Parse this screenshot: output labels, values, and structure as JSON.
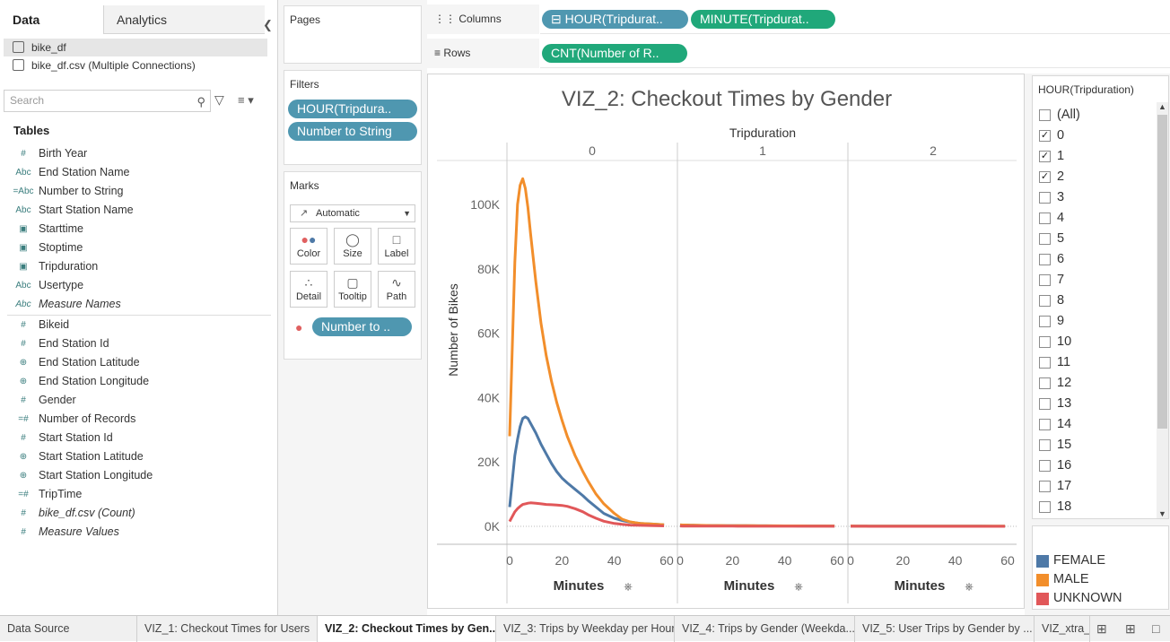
{
  "left_pane": {
    "tabs": [
      "Data",
      "Analytics"
    ],
    "datasources": [
      "bike_df",
      "bike_df.csv (Multiple Connections)"
    ],
    "search_placeholder": "Search",
    "tables_heading": "Tables",
    "dimensions": [
      {
        "icon": "#",
        "label": "Birth Year"
      },
      {
        "icon": "Abc",
        "label": "End Station Name"
      },
      {
        "icon": "=Abc",
        "label": "Number to String"
      },
      {
        "icon": "Abc",
        "label": "Start Station Name"
      },
      {
        "icon": "cal",
        "label": "Starttime"
      },
      {
        "icon": "cal",
        "label": "Stoptime"
      },
      {
        "icon": "cal",
        "label": "Tripduration"
      },
      {
        "icon": "Abc",
        "label": "Usertype"
      },
      {
        "icon": "Abc",
        "label": "Measure Names",
        "italic": true
      }
    ],
    "measures": [
      {
        "icon": "#",
        "label": "Bikeid"
      },
      {
        "icon": "#",
        "label": "End Station Id"
      },
      {
        "icon": "geo",
        "label": "End Station Latitude"
      },
      {
        "icon": "geo",
        "label": "End Station Longitude"
      },
      {
        "icon": "#",
        "label": "Gender"
      },
      {
        "icon": "=#",
        "label": "Number of Records"
      },
      {
        "icon": "#",
        "label": "Start Station Id"
      },
      {
        "icon": "geo",
        "label": "Start Station Latitude"
      },
      {
        "icon": "geo",
        "label": "Start Station Longitude"
      },
      {
        "icon": "=#",
        "label": "TripTime"
      },
      {
        "icon": "#",
        "label": "bike_df.csv (Count)",
        "italic": true
      },
      {
        "icon": "#",
        "label": "Measure Values",
        "italic": true
      }
    ]
  },
  "cards": {
    "pages_title": "Pages",
    "filters_title": "Filters",
    "filters": [
      "HOUR(Tripdura..",
      "Number to String"
    ],
    "marks_title": "Marks",
    "mark_type": "Automatic",
    "mark_buttons": [
      {
        "label": "Color",
        "icon": "color-icon"
      },
      {
        "label": "Size",
        "icon": "size-icon"
      },
      {
        "label": "Label",
        "icon": "label-icon"
      },
      {
        "label": "Detail",
        "icon": "detail-icon"
      },
      {
        "label": "Tooltip",
        "icon": "tooltip-icon"
      },
      {
        "label": "Path",
        "icon": "path-icon"
      }
    ],
    "color_pill": "Number to .."
  },
  "shelves": {
    "columns_label": "Columns",
    "columns_pills": [
      "⊟ HOUR(Tripdurat..",
      "MINUTE(Tripdurat.."
    ],
    "rows_label": "Rows",
    "rows_pills": [
      "CNT(Number of R.."
    ]
  },
  "filter_card": {
    "title": "HOUR(Tripduration)",
    "items": [
      {
        "label": "(All)",
        "checked": false
      },
      {
        "label": "0",
        "checked": true
      },
      {
        "label": "1",
        "checked": true
      },
      {
        "label": "2",
        "checked": true
      },
      {
        "label": "3",
        "checked": false
      },
      {
        "label": "4",
        "checked": false
      },
      {
        "label": "5",
        "checked": false
      },
      {
        "label": "6",
        "checked": false
      },
      {
        "label": "7",
        "checked": false
      },
      {
        "label": "8",
        "checked": false
      },
      {
        "label": "9",
        "checked": false
      },
      {
        "label": "10",
        "checked": false
      },
      {
        "label": "11",
        "checked": false
      },
      {
        "label": "12",
        "checked": false
      },
      {
        "label": "13",
        "checked": false
      },
      {
        "label": "14",
        "checked": false
      },
      {
        "label": "15",
        "checked": false
      },
      {
        "label": "16",
        "checked": false
      },
      {
        "label": "17",
        "checked": false
      },
      {
        "label": "18",
        "checked": false
      }
    ]
  },
  "legend": [
    {
      "label": "FEMALE",
      "color": "#4e79a7"
    },
    {
      "label": "MALE",
      "color": "#f28e2b"
    },
    {
      "label": "UNKNOWN",
      "color": "#e15759"
    }
  ],
  "sheet_tabs": [
    {
      "label": "Data Source",
      "active": false
    },
    {
      "label": "VIZ_1: Checkout Times for Users",
      "active": false
    },
    {
      "label": "VIZ_2: Checkout Times by Gen...",
      "active": true
    },
    {
      "label": "VIZ_3: Trips by Weekday per Hour",
      "active": false
    },
    {
      "label": "VIZ_4: Trips by Gender (Weekda...",
      "active": false
    },
    {
      "label": "VIZ_5: User Trips by Gender by ...",
      "active": false
    },
    {
      "label": "VIZ_xtra_",
      "active": false
    }
  ],
  "chart_data": {
    "type": "line",
    "title": "VIZ_2: Checkout Times by Gender",
    "column_header": "Tripduration",
    "panels": [
      "0",
      "1",
      "2"
    ],
    "xlabel": "Minutes",
    "ylabel": "Number of Bikes",
    "xlim": [
      0,
      60
    ],
    "xticks": [
      0,
      20,
      40,
      60
    ],
    "ylim": [
      0,
      110000
    ],
    "yticks": [
      0,
      20000,
      40000,
      60000,
      80000,
      100000
    ],
    "ytick_labels": [
      "0K",
      "20K",
      "40K",
      "60K",
      "80K",
      "100K"
    ],
    "x": [
      0,
      1,
      2,
      3,
      4,
      5,
      6,
      7,
      8,
      10,
      12,
      14,
      16,
      18,
      20,
      22,
      25,
      28,
      30,
      33,
      36,
      40,
      43,
      46,
      50,
      55,
      59
    ],
    "series": [
      {
        "name": "FEMALE",
        "color": "#4e79a7",
        "panels": [
          [
            6000,
            14000,
            22000,
            27000,
            31000,
            33500,
            34000,
            33500,
            32000,
            29000,
            25500,
            22500,
            19500,
            17000,
            15000,
            13500,
            11500,
            9500,
            8000,
            6000,
            4000,
            2500,
            1800,
            1300,
            900,
            700,
            500
          ],
          [
            450,
            420,
            400,
            380,
            360,
            340,
            320,
            300,
            290,
            270,
            250,
            240,
            230,
            220,
            210,
            200,
            190,
            180,
            170,
            160,
            150,
            140,
            130,
            120,
            110,
            100,
            90
          ],
          [
            90,
            88,
            86,
            84,
            82,
            80,
            78,
            76,
            74,
            72,
            70,
            68,
            66,
            64,
            62,
            60,
            58,
            56,
            54,
            52,
            50,
            48,
            46,
            44,
            42,
            40,
            38
          ]
        ]
      },
      {
        "name": "MALE",
        "color": "#f28e2b",
        "panels": [
          [
            28000,
            55000,
            82000,
            100000,
            106000,
            108000,
            105000,
            99000,
            91000,
            76000,
            63000,
            53000,
            45000,
            38500,
            33000,
            28000,
            22000,
            17000,
            14000,
            10000,
            7000,
            4000,
            2200,
            1400,
            900,
            700,
            500
          ],
          [
            450,
            430,
            410,
            390,
            370,
            350,
            330,
            310,
            300,
            280,
            260,
            250,
            240,
            230,
            220,
            210,
            200,
            190,
            180,
            170,
            160,
            150,
            140,
            130,
            120,
            110,
            100
          ],
          [
            100,
            98,
            96,
            94,
            92,
            90,
            88,
            86,
            84,
            82,
            80,
            78,
            76,
            74,
            72,
            70,
            68,
            66,
            64,
            62,
            60,
            58,
            56,
            54,
            52,
            50,
            48
          ]
        ]
      },
      {
        "name": "UNKNOWN",
        "color": "#e15759",
        "panels": [
          [
            1500,
            3000,
            4500,
            5500,
            6200,
            6800,
            7000,
            7200,
            7300,
            7200,
            7000,
            6800,
            6700,
            6600,
            6500,
            6200,
            5500,
            4500,
            3600,
            2500,
            1600,
            900,
            600,
            400,
            300,
            200,
            150
          ],
          [
            100,
            95,
            90,
            85,
            80,
            75,
            70,
            65,
            60,
            55,
            50,
            48,
            46,
            44,
            42,
            40,
            38,
            36,
            34,
            32,
            30,
            28,
            26,
            24,
            22,
            20,
            18
          ],
          [
            20,
            19,
            18,
            17,
            16,
            15,
            14,
            13,
            12,
            11,
            10,
            10,
            10,
            10,
            10,
            10,
            10,
            10,
            10,
            10,
            10,
            10,
            10,
            10,
            10,
            10,
            10
          ]
        ]
      }
    ]
  }
}
